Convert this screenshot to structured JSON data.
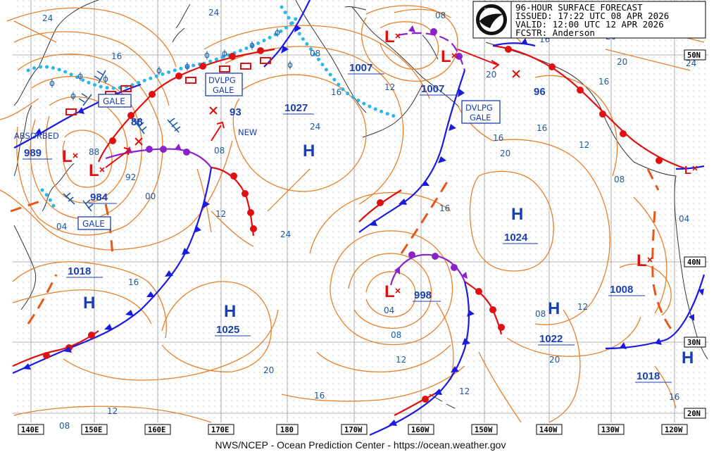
{
  "header": {
    "line1": "96-HOUR SURFACE FORECAST",
    "line2": "ISSUED: 17:22 UTC 08 APR 2026",
    "line3": "VALID:  12:00 UTC 12 APR 2026",
    "line4": "FCSTR:  Anderson"
  },
  "footer": "NWS/NCEP - Ocean Prediction Center - https://ocean.weather.gov",
  "longitudes": [
    "140E",
    "150E",
    "160E",
    "170E",
    "180",
    "170W",
    "160W",
    "150W",
    "140W",
    "130W",
    "120W"
  ],
  "latitudes": [
    "50N",
    "40N",
    "30N",
    "20N"
  ],
  "colors": {
    "isobar": "#e8802a",
    "isobar_label": "#1a5aa8",
    "high": "#1a3fb0",
    "low": "#e01010",
    "cold_front": "#1a1ae0",
    "warm_front": "#e01010",
    "occluded": "#8a22cc",
    "trough": "#e8561a",
    "dvlpg": "#2ab8ec",
    "wind": "#1a5aa8"
  },
  "centers": {
    "h1": {
      "letter": "H",
      "value": "1027"
    },
    "h2": {
      "letter": "H",
      "value": "1018"
    },
    "h3": {
      "letter": "H",
      "value": "1025"
    },
    "h4": {
      "letter": "H",
      "value": "1024"
    },
    "h5": {
      "letter": "H",
      "value": "1022"
    },
    "h6": {
      "letter": "H",
      "value": "1018"
    },
    "l1": {
      "letter": "L",
      "value": "989"
    },
    "l2": {
      "letter": "L",
      "value": "984"
    },
    "l3": {
      "letter": "L",
      "value": "998"
    },
    "l4": {
      "letter": "L",
      "value": "1007"
    },
    "l5": {
      "letter": "L",
      "value": "1007"
    },
    "l6": {
      "letter": "L",
      "value": "1008"
    }
  },
  "forecast_pressures": {
    "p88": "88",
    "p93": "93",
    "p96": "96"
  },
  "annotations": {
    "absorbed": "ABSORBED",
    "new": "NEW",
    "gale": "GALE",
    "dvlpg": "DVLPG"
  },
  "isobar_values": {
    "a": "24",
    "b": "16",
    "c": "08",
    "d": "12",
    "e": "16",
    "f": "20",
    "g": "24",
    "h": "16",
    "i": "08",
    "j": "12",
    "k": "16",
    "l": "20",
    "m": "24",
    "n": "16",
    "o": "12",
    "p": "08",
    "q": "04",
    "r": "00",
    "s": "92",
    "t": "88",
    "u": "04",
    "v": "08",
    "w": "12",
    "x": "16",
    "y": "20",
    "z": "20",
    "aa": "24",
    "ab": "16",
    "ac": "16",
    "ad": "12",
    "ae": "08",
    "af": "16",
    "ag": "20",
    "ah": "12",
    "ai": "08",
    "aj": "04",
    "ak": "20",
    "al": "16",
    "am": "24",
    "an": "08",
    "ao": "12"
  }
}
